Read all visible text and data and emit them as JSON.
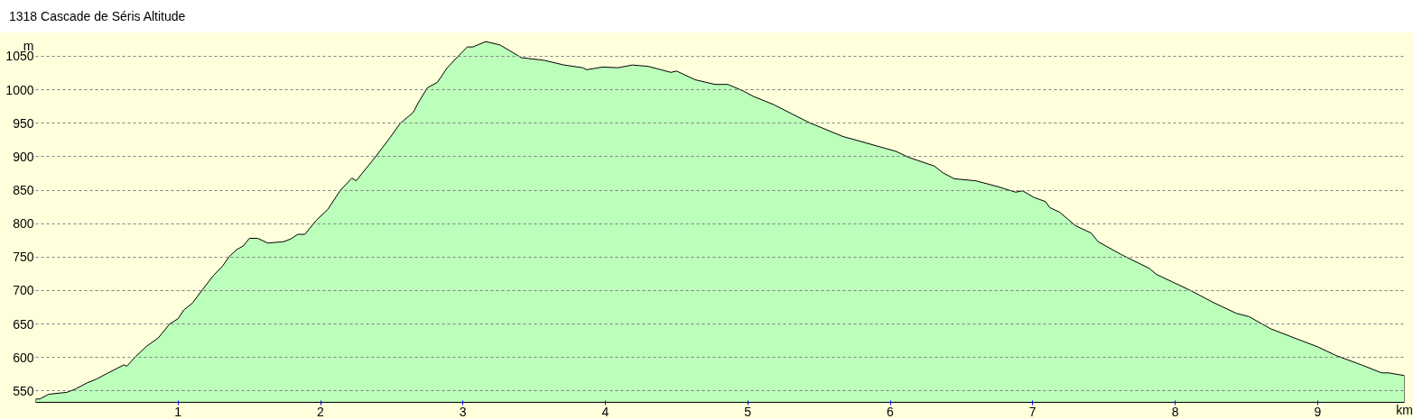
{
  "chart_data": {
    "type": "area",
    "title": "1318 Cascade de Séris Altitude",
    "xlabel": "km",
    "ylabel": "m",
    "x": [
      0.0,
      0.03,
      0.09,
      0.22,
      0.28,
      0.36,
      0.43,
      0.5,
      0.62,
      0.64,
      0.7,
      0.78,
      0.86,
      0.94,
      1.0,
      1.04,
      1.1,
      1.17,
      1.25,
      1.31,
      1.36,
      1.41,
      1.46,
      1.5,
      1.56,
      1.63,
      1.74,
      1.79,
      1.84,
      1.89,
      1.97,
      2.05,
      2.14,
      2.22,
      2.25,
      2.39,
      2.49,
      2.56,
      2.65,
      2.69,
      2.75,
      2.82,
      2.89,
      2.97,
      3.03,
      3.07,
      3.16,
      3.26,
      3.41,
      3.57,
      3.71,
      3.84,
      3.87,
      3.98,
      4.09,
      4.19,
      4.3,
      4.46,
      4.5,
      4.63,
      4.77,
      4.86,
      4.97,
      5.04,
      5.18,
      5.31,
      5.43,
      5.67,
      5.74,
      6.04,
      6.13,
      6.31,
      6.37,
      6.45,
      6.6,
      6.76,
      6.88,
      6.93,
      7.01,
      7.09,
      7.12,
      7.19,
      7.3,
      7.41,
      7.46,
      7.62,
      7.82,
      7.87,
      7.98,
      8.11,
      8.27,
      8.43,
      8.52,
      8.67,
      8.84,
      9.0,
      9.13,
      9.32,
      9.45,
      9.5,
      9.61
    ],
    "values": [
      538,
      538,
      545,
      548,
      553,
      562,
      568,
      576,
      589,
      587,
      601,
      617,
      629,
      650,
      658,
      671,
      681,
      701,
      723,
      736,
      751,
      761,
      767,
      778,
      778,
      771,
      773,
      777,
      784,
      784,
      805,
      821,
      850,
      868,
      864,
      901,
      929,
      950,
      966,
      982,
      1003,
      1011,
      1033,
      1051,
      1064,
      1064,
      1072,
      1067,
      1048,
      1044,
      1037,
      1033,
      1030,
      1034,
      1033,
      1037,
      1035,
      1026,
      1028,
      1015,
      1008,
      1008,
      998,
      990,
      978,
      964,
      951,
      930,
      926,
      908,
      899,
      886,
      876,
      867,
      864,
      855,
      847,
      849,
      839,
      833,
      824,
      817,
      797,
      786,
      773,
      754,
      733,
      724,
      713,
      700,
      682,
      666,
      661,
      643,
      629,
      616,
      603,
      588,
      577,
      577,
      573
    ],
    "color": "#bbffbb",
    "xlim": [
      0,
      9.61
    ],
    "ylim": [
      533,
      1085
    ],
    "xticks": [
      1,
      2,
      3,
      4,
      5,
      6,
      7,
      8,
      9
    ],
    "yticks": [
      550,
      600,
      650,
      700,
      750,
      800,
      850,
      900,
      950,
      1000,
      1050
    ],
    "grid": "y"
  }
}
